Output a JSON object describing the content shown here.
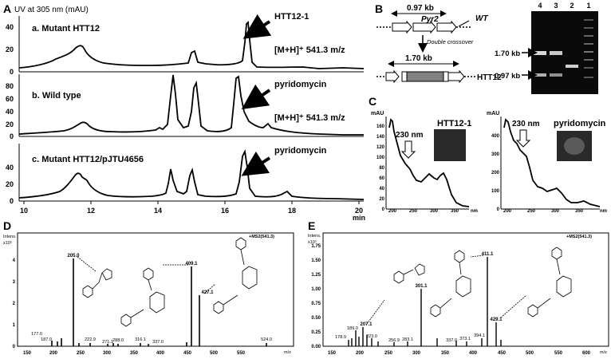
{
  "panels": {
    "A": {
      "letter": "A",
      "y_title": "UV at 305 nm (mAU)",
      "x_unit": "min",
      "x_ticks": [
        "10",
        "12",
        "14",
        "16",
        "18",
        "20"
      ],
      "traces": [
        {
          "label": "a. Mutant HTT12",
          "peak_label": "HTT12-1",
          "mass_label": "[M+H]⁺ 541.3 m/z",
          "y_ticks": [
            "0",
            "20",
            "40"
          ]
        },
        {
          "label": "b. Wild type",
          "peak_label": "pyridomycin",
          "mass_label": "[M+H]⁺ 541.3 m/z",
          "y_ticks": [
            "0",
            "20",
            "40",
            "60",
            "80"
          ]
        },
        {
          "label": "c. Mutant HTT12/pJTU4656",
          "peak_label": "pyridomycin",
          "mass_label": "",
          "y_ticks": [
            "0",
            "20",
            "40"
          ]
        }
      ]
    },
    "B": {
      "letter": "B",
      "wt_size": "0.97 kb",
      "gene": "Pyr2",
      "wt_label": "WT",
      "crossover": "Double crossover",
      "mut_size": "1.70 kb",
      "mut_label": "HTT12",
      "gel_lanes": [
        "4",
        "3",
        "2",
        "1"
      ],
      "gel_markers": [
        "1.70 kb",
        "0.97 kb"
      ]
    },
    "C": {
      "letter": "C",
      "left": {
        "y_unit": "mAU",
        "x_unit": "nm",
        "arrow_label": "230 nm",
        "inset_label": "HTT12-1",
        "y_ticks": [
          "0",
          "20",
          "40",
          "60",
          "80",
          "100",
          "120",
          "140",
          "160"
        ],
        "x_ticks": [
          "200",
          "250",
          "300",
          "350"
        ]
      },
      "right": {
        "y_unit": "mAU",
        "x_unit": "nm",
        "arrow_label": "230 nm",
        "inset_label": "pyridomycin",
        "y_ticks": [
          "0",
          "100",
          "200",
          "300",
          "400"
        ],
        "x_ticks": [
          "200",
          "250",
          "300",
          "350"
        ]
      }
    },
    "D": {
      "letter": "D",
      "y_title": "Intens.",
      "y_exp": "x10⁶",
      "title": "+MS2(541.3)",
      "x_unit": "m/z",
      "y_ticks": [
        "0",
        "1",
        "2",
        "3",
        "4"
      ],
      "x_ticks": [
        "150",
        "200",
        "250",
        "300",
        "350",
        "400",
        "450",
        "500",
        "550"
      ],
      "peak_labels": [
        "205.0",
        "409.1",
        "427.1",
        "177.0",
        "187.0",
        "222.9",
        "271.1",
        "288.0",
        "316.1",
        "337.0",
        "524.0"
      ]
    },
    "E": {
      "letter": "E",
      "y_title": "Intens.",
      "y_exp": "x10⁵",
      "title": "+MS2(541.3)",
      "x_unit": "m/z",
      "y_ticks": [
        "0.00",
        "0.25",
        "0.50",
        "0.75",
        "1.00",
        "1.25",
        "1.50",
        "1.75"
      ],
      "x_ticks": [
        "150",
        "200",
        "250",
        "300",
        "350",
        "400",
        "450",
        "500",
        "550",
        "600"
      ],
      "peak_labels": [
        "411.1",
        "301.1",
        "429.1",
        "178.9",
        "189.0",
        "207.1",
        "223.0",
        "256.9",
        "283.1",
        "337.0",
        "373.1",
        "394.1"
      ]
    }
  },
  "colors": {
    "ink": "#000000",
    "gel_bg": "#0a0a0a",
    "inset_bg": "#2a2a2a",
    "insert": "#808080"
  }
}
